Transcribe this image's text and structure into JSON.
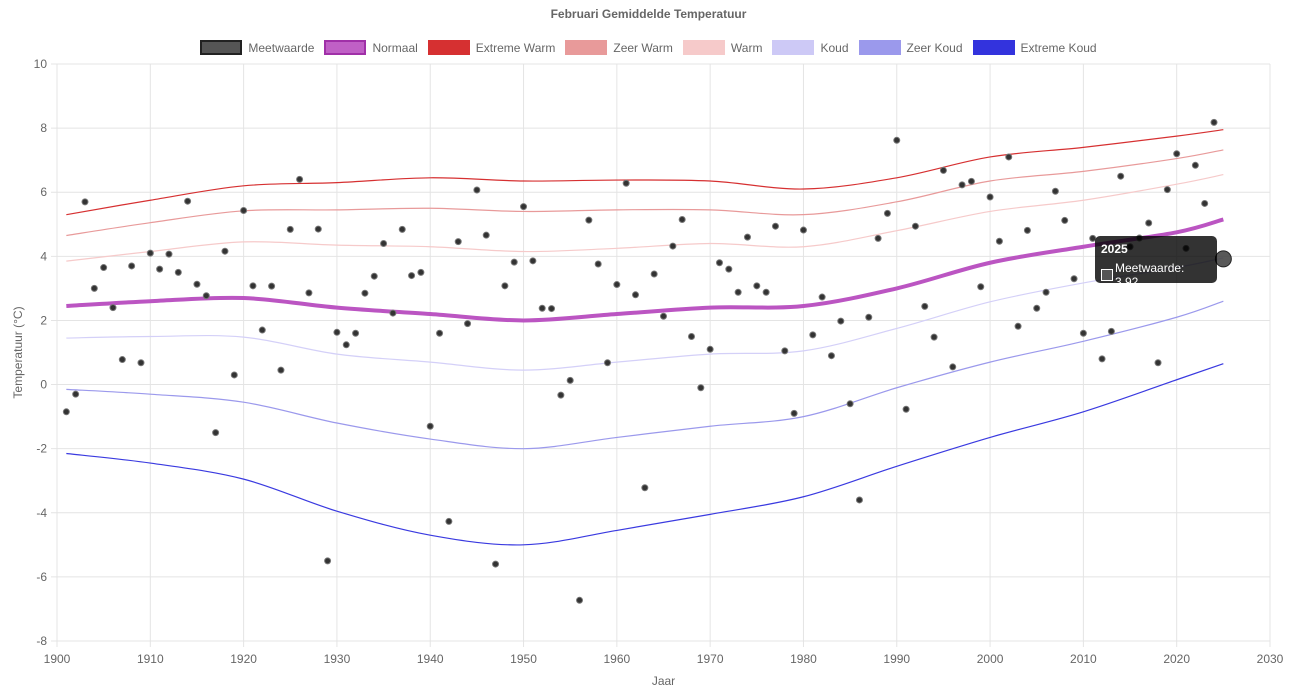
{
  "chart_data": {
    "type": "line",
    "title": "Februari Gemiddelde Temperatuur",
    "xlabel": "Jaar",
    "ylabel": "Temperatuur (°C)",
    "xlim": [
      1900,
      2030
    ],
    "ylim": [
      -8,
      10
    ],
    "xticks": [
      1900,
      1910,
      1920,
      1930,
      1940,
      1950,
      1960,
      1970,
      1980,
      1990,
      2000,
      2010,
      2020,
      2030
    ],
    "yticks": [
      -8,
      -6,
      -4,
      -2,
      0,
      2,
      4,
      6,
      8,
      10
    ],
    "grid": true,
    "legend_position": "top",
    "legend": [
      {
        "name": "Meetwaarde",
        "color": "#555555",
        "border": "#222222"
      },
      {
        "name": "Normaal",
        "color": "#c060c6",
        "border": "#a030a8"
      },
      {
        "name": "Extreme Warm",
        "color": "#d63031",
        "border": "#d63031"
      },
      {
        "name": "Zeer Warm",
        "color": "#e89a9a",
        "border": "#e89a9a"
      },
      {
        "name": "Warm",
        "color": "#f6caca",
        "border": "#f6caca"
      },
      {
        "name": "Koud",
        "color": "#cdc9f6",
        "border": "#cdc9f6"
      },
      {
        "name": "Zeer Koud",
        "color": "#9b99ec",
        "border": "#9b99ec"
      },
      {
        "name": "Extreme Koud",
        "color": "#3333dd",
        "border": "#3333dd"
      }
    ],
    "band_x": [
      1901,
      1910,
      1920,
      1930,
      1940,
      1950,
      1960,
      1970,
      1980,
      1990,
      2000,
      2010,
      2020,
      2025
    ],
    "bands": [
      {
        "name": "Extreme Warm",
        "color": "#d63031",
        "width": 1.2,
        "values": [
          5.3,
          5.75,
          6.2,
          6.3,
          6.45,
          6.35,
          6.38,
          6.35,
          6.1,
          6.45,
          7.1,
          7.4,
          7.75,
          7.95
        ]
      },
      {
        "name": "Zeer Warm",
        "color": "#e89a9a",
        "width": 1.2,
        "values": [
          4.65,
          5.05,
          5.42,
          5.45,
          5.5,
          5.4,
          5.45,
          5.45,
          5.3,
          5.7,
          6.35,
          6.65,
          7.05,
          7.32
        ]
      },
      {
        "name": "Warm",
        "color": "#f6caca",
        "width": 1.2,
        "values": [
          3.85,
          4.15,
          4.45,
          4.35,
          4.3,
          4.15,
          4.25,
          4.4,
          4.3,
          4.8,
          5.4,
          5.75,
          6.25,
          6.55
        ]
      },
      {
        "name": "Normaal",
        "color": "#bb55c2",
        "width": 4,
        "values": [
          2.45,
          2.6,
          2.7,
          2.4,
          2.2,
          2.0,
          2.2,
          2.4,
          2.45,
          3.0,
          3.8,
          4.3,
          4.75,
          5.15
        ]
      },
      {
        "name": "Koud",
        "color": "#d4d0f8",
        "width": 1.2,
        "values": [
          1.45,
          1.5,
          1.48,
          0.95,
          0.7,
          0.45,
          0.7,
          0.95,
          1.05,
          1.75,
          2.58,
          3.17,
          3.65,
          3.95
        ]
      },
      {
        "name": "Zeer Koud",
        "color": "#9b99ec",
        "width": 1.2,
        "values": [
          -0.15,
          -0.3,
          -0.55,
          -1.2,
          -1.7,
          -2.0,
          -1.65,
          -1.3,
          -1.0,
          -0.1,
          0.7,
          1.35,
          2.1,
          2.6
        ]
      },
      {
        "name": "Extreme Koud",
        "color": "#3a3ae0",
        "width": 1.2,
        "values": [
          -2.15,
          -2.45,
          -2.95,
          -3.95,
          -4.7,
          -5.0,
          -4.55,
          -4.05,
          -3.5,
          -2.55,
          -1.65,
          -0.85,
          0.15,
          0.65
        ]
      }
    ],
    "measurements": {
      "name": "Meetwaarde",
      "start_year": 1901,
      "values": [
        -0.85,
        -0.3,
        5.7,
        3.0,
        3.65,
        2.4,
        0.78,
        3.7,
        0.68,
        4.1,
        3.6,
        4.07,
        3.5,
        5.72,
        3.13,
        2.77,
        -1.5,
        4.16,
        0.3,
        5.43,
        3.08,
        1.7,
        3.07,
        0.45,
        4.84,
        6.4,
        2.86,
        4.85,
        -5.5,
        1.63,
        1.24,
        1.6,
        2.85,
        3.38,
        4.4,
        2.23,
        4.84,
        3.4,
        3.5,
        -1.3,
        1.6,
        -4.27,
        4.46,
        1.9,
        6.07,
        4.66,
        -5.6,
        3.08,
        3.82,
        5.55,
        3.86,
        2.38,
        2.37,
        -0.33,
        0.13,
        -6.73,
        5.13,
        3.76,
        0.68,
        3.12,
        6.28,
        2.8,
        -3.22,
        3.45,
        2.13,
        4.32,
        5.15,
        1.5,
        -0.1,
        1.1,
        3.8,
        3.6,
        2.88,
        4.6,
        3.08,
        2.88,
        4.94,
        1.05,
        -0.9,
        4.82,
        1.55,
        2.73,
        0.9,
        1.98,
        -0.6,
        -3.6,
        2.1,
        4.56,
        5.34,
        7.62,
        -0.77,
        4.94,
        2.44,
        1.48,
        6.68,
        0.55,
        6.23,
        6.34,
        3.05,
        5.85,
        4.47,
        7.1,
        1.82,
        4.81,
        2.38,
        2.88,
        6.03,
        5.12,
        3.3,
        1.6,
        4.56,
        0.8,
        1.66,
        6.5,
        4.3,
        4.57,
        5.04,
        0.68,
        6.08,
        7.2,
        4.25,
        6.84,
        5.65,
        8.18,
        3.92
      ]
    },
    "tooltip": {
      "title": "2025",
      "label": "Meetwaarde: 3.92"
    }
  }
}
